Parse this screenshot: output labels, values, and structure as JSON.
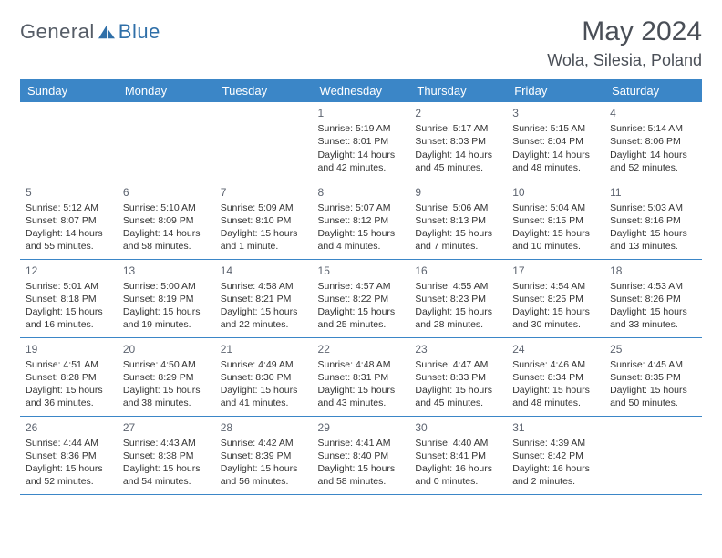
{
  "brand": {
    "name_part1": "General",
    "name_part2": "Blue",
    "color1": "#6b7077",
    "color2": "#2f6fa8",
    "icon_color": "#2f6fa8"
  },
  "header": {
    "title": "May 2024",
    "location": "Wola, Silesia, Poland"
  },
  "style": {
    "header_bg": "#3b86c7",
    "header_text": "#ffffff",
    "border_color": "#3b86c7",
    "body_text": "#333333",
    "daynum_color": "#5d6470",
    "page_bg": "#ffffff"
  },
  "days_of_week": [
    "Sunday",
    "Monday",
    "Tuesday",
    "Wednesday",
    "Thursday",
    "Friday",
    "Saturday"
  ],
  "weeks": [
    [
      null,
      null,
      null,
      {
        "n": "1",
        "sr": "5:19 AM",
        "ss": "8:01 PM",
        "dl": "14 hours and 42 minutes."
      },
      {
        "n": "2",
        "sr": "5:17 AM",
        "ss": "8:03 PM",
        "dl": "14 hours and 45 minutes."
      },
      {
        "n": "3",
        "sr": "5:15 AM",
        "ss": "8:04 PM",
        "dl": "14 hours and 48 minutes."
      },
      {
        "n": "4",
        "sr": "5:14 AM",
        "ss": "8:06 PM",
        "dl": "14 hours and 52 minutes."
      }
    ],
    [
      {
        "n": "5",
        "sr": "5:12 AM",
        "ss": "8:07 PM",
        "dl": "14 hours and 55 minutes."
      },
      {
        "n": "6",
        "sr": "5:10 AM",
        "ss": "8:09 PM",
        "dl": "14 hours and 58 minutes."
      },
      {
        "n": "7",
        "sr": "5:09 AM",
        "ss": "8:10 PM",
        "dl": "15 hours and 1 minute."
      },
      {
        "n": "8",
        "sr": "5:07 AM",
        "ss": "8:12 PM",
        "dl": "15 hours and 4 minutes."
      },
      {
        "n": "9",
        "sr": "5:06 AM",
        "ss": "8:13 PM",
        "dl": "15 hours and 7 minutes."
      },
      {
        "n": "10",
        "sr": "5:04 AM",
        "ss": "8:15 PM",
        "dl": "15 hours and 10 minutes."
      },
      {
        "n": "11",
        "sr": "5:03 AM",
        "ss": "8:16 PM",
        "dl": "15 hours and 13 minutes."
      }
    ],
    [
      {
        "n": "12",
        "sr": "5:01 AM",
        "ss": "8:18 PM",
        "dl": "15 hours and 16 minutes."
      },
      {
        "n": "13",
        "sr": "5:00 AM",
        "ss": "8:19 PM",
        "dl": "15 hours and 19 minutes."
      },
      {
        "n": "14",
        "sr": "4:58 AM",
        "ss": "8:21 PM",
        "dl": "15 hours and 22 minutes."
      },
      {
        "n": "15",
        "sr": "4:57 AM",
        "ss": "8:22 PM",
        "dl": "15 hours and 25 minutes."
      },
      {
        "n": "16",
        "sr": "4:55 AM",
        "ss": "8:23 PM",
        "dl": "15 hours and 28 minutes."
      },
      {
        "n": "17",
        "sr": "4:54 AM",
        "ss": "8:25 PM",
        "dl": "15 hours and 30 minutes."
      },
      {
        "n": "18",
        "sr": "4:53 AM",
        "ss": "8:26 PM",
        "dl": "15 hours and 33 minutes."
      }
    ],
    [
      {
        "n": "19",
        "sr": "4:51 AM",
        "ss": "8:28 PM",
        "dl": "15 hours and 36 minutes."
      },
      {
        "n": "20",
        "sr": "4:50 AM",
        "ss": "8:29 PM",
        "dl": "15 hours and 38 minutes."
      },
      {
        "n": "21",
        "sr": "4:49 AM",
        "ss": "8:30 PM",
        "dl": "15 hours and 41 minutes."
      },
      {
        "n": "22",
        "sr": "4:48 AM",
        "ss": "8:31 PM",
        "dl": "15 hours and 43 minutes."
      },
      {
        "n": "23",
        "sr": "4:47 AM",
        "ss": "8:33 PM",
        "dl": "15 hours and 45 minutes."
      },
      {
        "n": "24",
        "sr": "4:46 AM",
        "ss": "8:34 PM",
        "dl": "15 hours and 48 minutes."
      },
      {
        "n": "25",
        "sr": "4:45 AM",
        "ss": "8:35 PM",
        "dl": "15 hours and 50 minutes."
      }
    ],
    [
      {
        "n": "26",
        "sr": "4:44 AM",
        "ss": "8:36 PM",
        "dl": "15 hours and 52 minutes."
      },
      {
        "n": "27",
        "sr": "4:43 AM",
        "ss": "8:38 PM",
        "dl": "15 hours and 54 minutes."
      },
      {
        "n": "28",
        "sr": "4:42 AM",
        "ss": "8:39 PM",
        "dl": "15 hours and 56 minutes."
      },
      {
        "n": "29",
        "sr": "4:41 AM",
        "ss": "8:40 PM",
        "dl": "15 hours and 58 minutes."
      },
      {
        "n": "30",
        "sr": "4:40 AM",
        "ss": "8:41 PM",
        "dl": "16 hours and 0 minutes."
      },
      {
        "n": "31",
        "sr": "4:39 AM",
        "ss": "8:42 PM",
        "dl": "16 hours and 2 minutes."
      },
      null
    ]
  ],
  "labels": {
    "sunrise": "Sunrise:",
    "sunset": "Sunset:",
    "daylight": "Daylight:"
  }
}
